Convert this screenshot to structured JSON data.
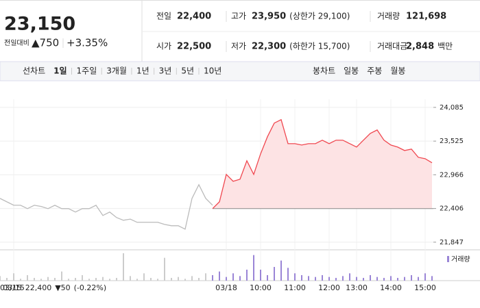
{
  "quote": {
    "price": "23,150",
    "change_label": "전일대비",
    "change": "▲750",
    "rate": "+3.35%"
  },
  "summary": [
    {
      "label": "전일",
      "value": "22,400"
    },
    {
      "label": "고가",
      "value": "23,950",
      "note": "(상한가 29,100)"
    },
    {
      "label": "거래량",
      "value": "121,698"
    },
    {
      "label": "시가",
      "value": "22,500"
    },
    {
      "label": "저가",
      "value": "22,300",
      "note": "(하한가 15,700)"
    },
    {
      "label": "거래대금",
      "value": "2,848",
      "unit": "백만"
    }
  ],
  "tabs": {
    "line_label": "선차트",
    "line": [
      "1일",
      "1주일",
      "3개월",
      "1년",
      "3년",
      "5년",
      "10년"
    ],
    "candle_label": "봉차트",
    "candle": [
      "일봉",
      "주봉",
      "월봉"
    ]
  },
  "chart_data": {
    "type": "line",
    "categories": [
      null,
      null,
      "03/15",
      null,
      null,
      null,
      null,
      null,
      null,
      null,
      null,
      null,
      null,
      null,
      null,
      null,
      null,
      null,
      null,
      null,
      null,
      null,
      null,
      null,
      null,
      null,
      null,
      null,
      null,
      null,
      null,
      null,
      null,
      "03/18",
      null,
      null,
      null,
      null,
      "10:00",
      null,
      null,
      null,
      null,
      "11:00",
      null,
      null,
      null,
      null,
      "12:00",
      null,
      null,
      null,
      "13:00",
      null,
      null,
      null,
      null,
      "14:00",
      null,
      null,
      null,
      null,
      "15:00",
      null
    ],
    "series": [
      {
        "color": "#bbbbbb",
        "values": [
          22574,
          22517,
          22460,
          22460,
          22404,
          22460,
          22440,
          22404,
          22460,
          22404,
          22404,
          22347,
          22404,
          22404,
          22460,
          22290,
          22347,
          22256,
          22211,
          22230,
          22177,
          22177,
          22177,
          22177,
          22142,
          22120,
          22120,
          22063,
          22574,
          22801,
          22574,
          22460,
          null,
          null,
          null,
          null,
          null,
          null,
          null,
          null,
          null,
          null,
          null,
          null,
          null,
          null,
          null,
          null,
          null,
          null,
          null,
          null,
          null,
          null,
          null,
          null,
          null,
          null,
          null,
          null,
          null,
          null,
          null,
          null
        ]
      },
      {
        "color": "#f0474f",
        "values": [
          null,
          null,
          null,
          null,
          null,
          null,
          null,
          null,
          null,
          null,
          null,
          null,
          null,
          null,
          null,
          null,
          null,
          null,
          null,
          null,
          null,
          null,
          null,
          null,
          null,
          null,
          null,
          null,
          null,
          null,
          null,
          22404,
          22517,
          22972,
          22858,
          22892,
          23199,
          22972,
          23313,
          23597,
          23824,
          23881,
          23483,
          23483,
          23460,
          23483,
          23483,
          23540,
          23483,
          23540,
          23540,
          23483,
          23426,
          23540,
          23653,
          23710,
          23540,
          23460,
          23426,
          23369,
          23392,
          23256,
          23233,
          23165
        ]
      }
    ],
    "volume": [
      {
        "color": "#cccccc",
        "values": [
          5,
          3,
          8,
          2,
          6,
          3,
          2,
          4,
          3,
          10,
          2,
          3,
          6,
          2,
          3,
          4,
          2,
          3,
          30,
          5,
          2,
          8,
          3,
          2,
          25,
          3,
          4,
          2,
          5,
          3,
          8,
          null,
          null,
          null,
          null,
          null,
          null,
          null,
          null,
          null,
          null,
          null,
          null,
          null,
          null,
          null,
          null,
          null,
          null,
          null,
          null,
          null,
          null,
          null,
          null,
          null,
          null,
          null,
          null,
          null,
          null,
          null,
          null,
          null
        ]
      },
      {
        "name": "거래량",
        "color": "#9a85d6",
        "values": [
          null,
          null,
          null,
          null,
          null,
          null,
          null,
          null,
          null,
          null,
          null,
          null,
          null,
          null,
          null,
          null,
          null,
          null,
          null,
          null,
          null,
          null,
          null,
          null,
          null,
          null,
          null,
          null,
          null,
          null,
          null,
          6,
          10,
          4,
          8,
          5,
          12,
          28,
          12,
          6,
          15,
          22,
          14,
          8,
          6,
          5,
          4,
          6,
          4,
          3,
          5,
          8,
          4,
          3,
          6,
          4,
          3,
          5,
          3,
          4,
          6,
          4,
          8,
          5
        ]
      }
    ],
    "ylim": [
      21720,
      24220
    ],
    "yticks": [
      {
        "value": 24085,
        "label": "24,085"
      },
      {
        "value": 23525,
        "label": "23,525"
      },
      {
        "value": 22966,
        "label": "22,966"
      },
      {
        "value": 22406,
        "label": "22,406"
      },
      {
        "value": 21847,
        "label": "21,847"
      }
    ],
    "grid": true
  },
  "footer": {
    "date": "03/15",
    "price": "22,400",
    "change": "▼50",
    "rate": "(-0.22%)"
  }
}
